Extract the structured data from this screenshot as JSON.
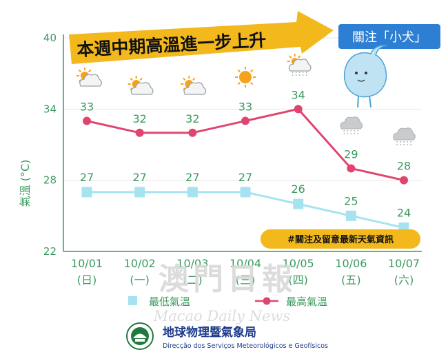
{
  "banner": {
    "text": "本週中期高溫進一步上升"
  },
  "tag": {
    "text": "關注「小犬」"
  },
  "hashtag": {
    "text": "#關注及留意最新天氣資訊"
  },
  "legend": {
    "low_label": "最低氣溫",
    "high_label": "最高氣溫"
  },
  "org": {
    "name_zh": "地球物理暨氣象局",
    "name_pt": "Direcção dos Serviços Meteorológicos e Geofísicos"
  },
  "watermark": {
    "zh": "澳門日報",
    "en": "Macao Daily News"
  },
  "colors": {
    "high": "#e0456f",
    "low": "#a6e3f0",
    "axis": "#3a9a5e",
    "banner": "#f2b81c",
    "tag": "#2d7fd4"
  },
  "chart_data": {
    "type": "line",
    "x": [
      "10/01",
      "10/02",
      "10/03",
      "10/04",
      "10/05",
      "10/06",
      "10/07"
    ],
    "x_sub": [
      "(日)",
      "(一)",
      "(二)",
      "(三)",
      "(四)",
      "(五)",
      "(六)"
    ],
    "ylabel": "氣溫 (°C)",
    "yticks": [
      22,
      28,
      34,
      40
    ],
    "ylim": [
      22,
      40
    ],
    "grid": true,
    "legend_position": "bottom",
    "series": [
      {
        "name": "最高氣溫",
        "values": [
          33,
          32,
          32,
          33,
          34,
          29,
          28
        ]
      },
      {
        "name": "最低氣溫",
        "values": [
          27,
          27,
          27,
          27,
          26,
          25,
          24
        ]
      }
    ],
    "weather_icons": [
      "sun-cloud",
      "sun-cloud",
      "sun-cloud",
      "sun",
      "sun-rain",
      "rain",
      "rain"
    ]
  }
}
